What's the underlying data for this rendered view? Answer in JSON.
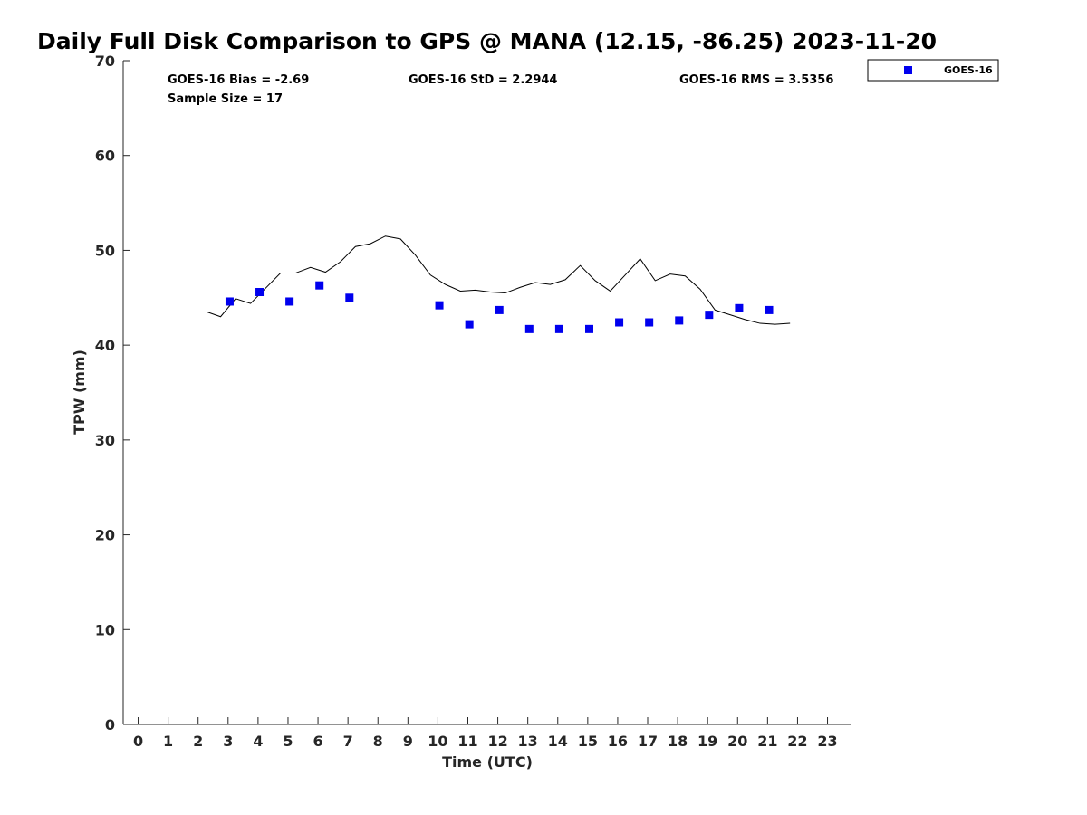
{
  "chart_data": {
    "type": "scatter",
    "title": "Daily Full Disk Comparison to GPS @ MANA (12.15, -86.25) 2023-11-20",
    "xlabel": "Time (UTC)",
    "ylabel": "TPW (mm)",
    "xlim": [
      -0.5,
      23.8
    ],
    "ylim": [
      0,
      70
    ],
    "xticks": [
      "0",
      "1",
      "2",
      "3",
      "4",
      "5",
      "6",
      "7",
      "8",
      "9",
      "10",
      "11",
      "12",
      "13",
      "14",
      "15",
      "16",
      "17",
      "18",
      "19",
      "20",
      "21",
      "22",
      "23"
    ],
    "yticks": [
      "0",
      "10",
      "20",
      "30",
      "40",
      "50",
      "60",
      "70"
    ],
    "grid": false,
    "legend_position": "outside top-right",
    "stats": {
      "bias": "GOES-16 Bias = -2.69",
      "std": "GOES-16 StD = 2.2944",
      "rms": "GOES-16 RMS = 3.5356",
      "sample": "Sample Size = 17"
    },
    "series": [
      {
        "name": "GOES-16",
        "kind": "scatter",
        "color": "#0000ee",
        "x": [
          3.05,
          4.05,
          5.05,
          6.05,
          7.05,
          10.05,
          11.05,
          12.05,
          13.05,
          14.05,
          15.05,
          16.05,
          17.05,
          18.05,
          19.05,
          20.05,
          21.05
        ],
        "y": [
          44.6,
          45.6,
          44.6,
          46.3,
          45.0,
          44.2,
          42.2,
          43.7,
          41.7,
          41.7,
          41.7,
          42.4,
          42.4,
          42.6,
          43.2,
          43.9,
          43.7
        ]
      },
      {
        "kind": "line",
        "color": "#000000",
        "x": [
          2.3,
          2.75,
          3.25,
          3.75,
          4.25,
          4.75,
          5.25,
          5.75,
          6.25,
          6.75,
          7.25,
          7.75,
          8.25,
          8.75,
          9.25,
          9.75,
          10.25,
          10.75,
          11.25,
          11.75,
          12.25,
          12.75,
          13.25,
          13.75,
          14.25,
          14.75,
          15.25,
          15.75,
          16.25,
          16.75,
          17.25,
          17.75,
          18.25,
          18.75,
          19.25,
          19.75,
          20.25,
          20.75,
          21.25,
          21.75
        ],
        "y": [
          43.5,
          43.0,
          44.9,
          44.4,
          46.0,
          47.6,
          47.6,
          48.2,
          47.7,
          48.8,
          50.4,
          50.7,
          51.5,
          51.2,
          49.5,
          47.4,
          46.4,
          45.7,
          45.8,
          45.6,
          45.5,
          46.1,
          46.6,
          46.4,
          46.9,
          48.4,
          46.8,
          45.7,
          47.4,
          49.1,
          46.8,
          47.5,
          47.3,
          45.9,
          43.7,
          43.2,
          42.7,
          42.3,
          42.2,
          42.3
        ]
      }
    ]
  }
}
